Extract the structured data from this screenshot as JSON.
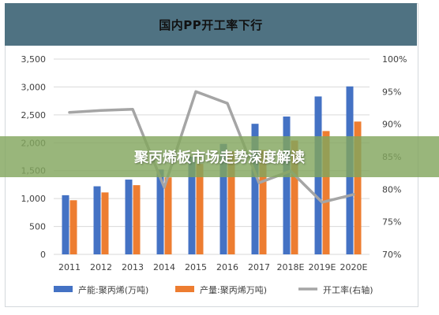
{
  "chart_data": {
    "type": "bar",
    "title": "国内PP开工率下行",
    "categories": [
      "2011",
      "2012",
      "2013",
      "2014",
      "2015",
      "2016",
      "2017",
      "2018E",
      "2019E",
      "2020E"
    ],
    "series": [
      {
        "name": "产能:聚丙烯(万吨)",
        "type": "bar",
        "axis": "left",
        "color": "#4472c4",
        "values": [
          1060,
          1220,
          1340,
          1520,
          1750,
          1980,
          2340,
          2470,
          2830,
          3010
        ]
      },
      {
        "name": "产量:聚丙烯万吨)",
        "type": "bar",
        "axis": "left",
        "color": "#ed7d31",
        "values": [
          970,
          1110,
          1240,
          1380,
          1620,
          1850,
          1870,
          2040,
          2210,
          2380
        ]
      },
      {
        "name": "开工率(右轴)",
        "type": "line",
        "axis": "right",
        "color": "#a5a5a5",
        "values": [
          91.8,
          92.1,
          92.3,
          80.3,
          95.0,
          93.2,
          81.0,
          82.8,
          78.0,
          79.2
        ]
      }
    ],
    "ylim": [
      0,
      3500
    ],
    "yticks": [
      "0",
      "500",
      "1,000",
      "1,500",
      "2,000",
      "2,500",
      "3,000",
      "3,500"
    ],
    "y2lim": [
      70,
      100
    ],
    "y2ticks": [
      "70%",
      "75%",
      "80%",
      "85%",
      "90%",
      "95%",
      "100%"
    ],
    "grid": true,
    "legend": "bottom"
  },
  "banner": {
    "text": "聚丙烯板市场走势深度解读"
  },
  "colors": {
    "title_bar": "#4f7282",
    "capacity": "#4472c4",
    "output": "#ed7d31",
    "rate": "#a5a5a5",
    "grid": "#d9d9d9",
    "banner": "#82a65e"
  }
}
